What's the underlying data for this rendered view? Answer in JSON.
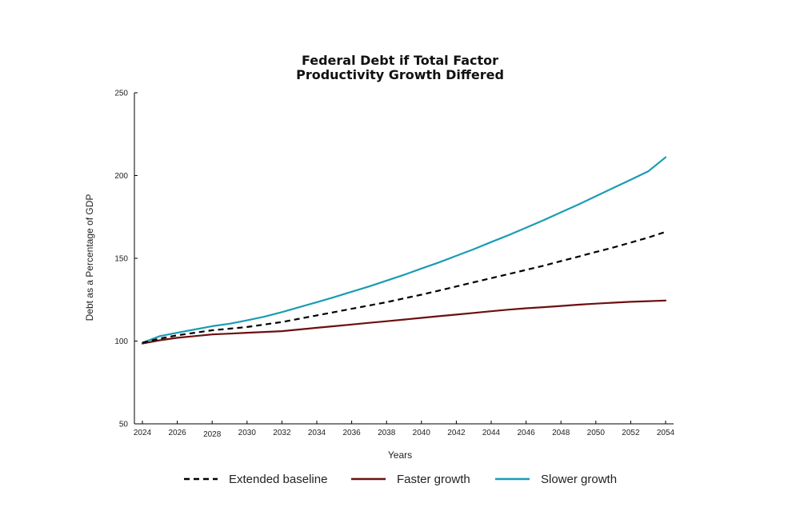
{
  "chart_data": {
    "type": "line",
    "title_lines": [
      "Federal Debt if Total Factor",
      "Productivity Growth Differed"
    ],
    "xlabel": "Years",
    "ylabel": "Debt as a Percentage of GDP",
    "xlim": [
      2024,
      2054
    ],
    "ylim": [
      50,
      250
    ],
    "x_ticks": [
      "2024",
      "2026",
      "2028",
      "2030",
      "2032",
      "2034",
      "2036",
      "2038",
      "2040",
      "2042",
      "2044",
      "2046",
      "2048",
      "2050",
      "2052",
      "2054"
    ],
    "y_ticks": [
      "50",
      "100",
      "150",
      "200",
      "250"
    ],
    "grid": false,
    "legend_position": "bottom",
    "x": [
      2024,
      2025,
      2026,
      2027,
      2028,
      2029,
      2030,
      2031,
      2032,
      2033,
      2034,
      2035,
      2036,
      2037,
      2038,
      2039,
      2040,
      2041,
      2042,
      2043,
      2044,
      2045,
      2046,
      2047,
      2048,
      2049,
      2050,
      2051,
      2052,
      2053,
      2054
    ],
    "series": [
      {
        "name": "Extended baseline",
        "color": "#000000",
        "style": "dashed",
        "values": [
          99,
          101.5,
          103.5,
          105,
          106.5,
          107.5,
          108.5,
          110,
          111.5,
          113.5,
          115.5,
          117.5,
          119.5,
          121.5,
          123.5,
          125.8,
          128,
          130.5,
          133,
          135.5,
          138,
          140.5,
          143,
          145.5,
          148.3,
          151,
          153.8,
          156.5,
          159.5,
          162.5,
          166
        ]
      },
      {
        "name": "Faster growth",
        "color": "#6b0f0f",
        "style": "solid",
        "values": [
          98.5,
          100.5,
          102,
          103,
          104,
          104.5,
          105,
          105.5,
          106,
          107,
          108,
          109,
          110,
          111,
          112,
          113,
          114,
          115,
          116,
          117,
          118,
          119,
          119.8,
          120.5,
          121.2,
          122,
          122.6,
          123.2,
          123.7,
          124.1,
          124.5
        ]
      },
      {
        "name": "Slower growth",
        "color": "#1a9cb3",
        "style": "solid",
        "values": [
          99,
          103,
          105,
          107,
          109,
          110.5,
          112.5,
          114.8,
          117.5,
          120.5,
          123.5,
          126.5,
          129.8,
          133,
          136.5,
          140,
          143.8,
          147.5,
          151.5,
          155.5,
          159.8,
          164,
          168.5,
          173,
          177.8,
          182.5,
          187.5,
          192.5,
          197.5,
          202.5,
          211
        ]
      }
    ]
  }
}
